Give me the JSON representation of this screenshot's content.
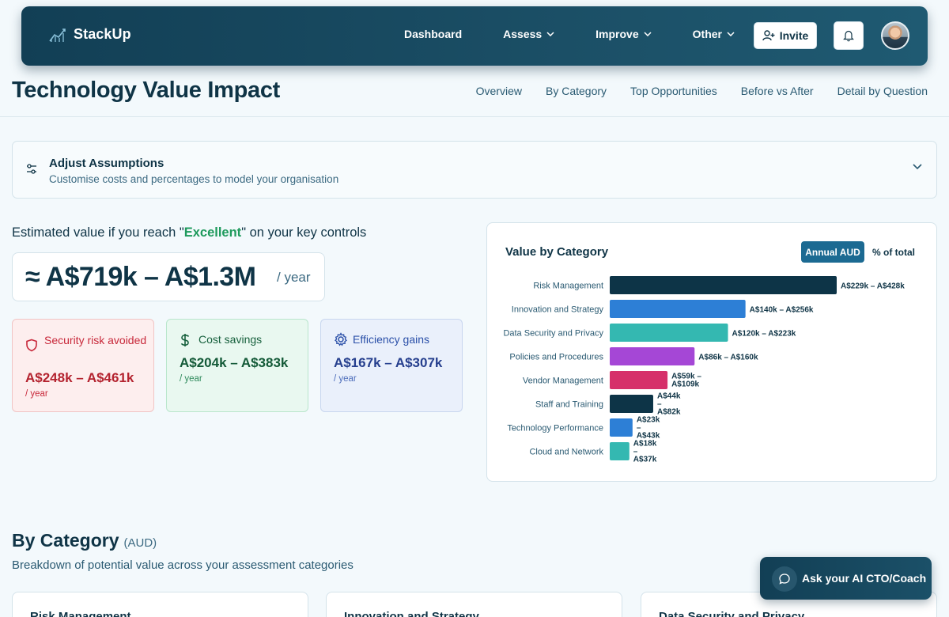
{
  "brand": {
    "name": "StackUp"
  },
  "nav": {
    "items": [
      {
        "label": "Dashboard",
        "has_dropdown": false
      },
      {
        "label": "Assess",
        "has_dropdown": true
      },
      {
        "label": "Improve",
        "has_dropdown": true
      },
      {
        "label": "Other",
        "has_dropdown": true
      }
    ],
    "invite_label": "Invite",
    "icons": {
      "invite": "add-user-icon",
      "bell": "bell-icon",
      "avatar": "user-avatar"
    }
  },
  "page": {
    "title": "Technology Value Impact",
    "subnav": [
      "Overview",
      "By Category",
      "Top Opportunities",
      "Before vs After",
      "Detail by Question"
    ]
  },
  "assumptions": {
    "title": "Adjust Assumptions",
    "subtitle": "Customise costs and percentages to model your organisation",
    "icon": "sliders-icon"
  },
  "estimate": {
    "heading_prefix": "Estimated value if you reach \"",
    "heading_highlight": "Excellent",
    "heading_suffix": "\" on your key controls",
    "value": "≈ A$719k – A$1.3M",
    "unit": "/ year",
    "colors": {
      "highlight": "#1e9a5c"
    }
  },
  "cards": [
    {
      "title": "Security risk avoided",
      "value": "A$248k – A$461k",
      "unit": "/ year",
      "icon": "shield-icon",
      "color": "#c8283a"
    },
    {
      "title": "Cost savings",
      "value": "A$204k – A$383k",
      "unit": "/ year",
      "icon": "dollar-icon",
      "color": "#17603d"
    },
    {
      "title": "Efficiency gains",
      "value": "A$167k – A$307k",
      "unit": "/ year",
      "icon": "gear-icon",
      "color": "#2a4fa8"
    }
  ],
  "chart": {
    "toggle_annual": "Annual AUD",
    "toggle_percent": "% of total",
    "active_toggle": "Annual AUD"
  },
  "chart_data": {
    "type": "bar",
    "orientation": "horizontal",
    "title": "Value by Category",
    "categories": [
      "Risk Management",
      "Innovation and Strategy",
      "Data Security and Privacy",
      "Policies and Procedures",
      "Vendor Management",
      "Staff and Training",
      "Technology Performance",
      "Cloud and Network"
    ],
    "values": [
      428,
      256,
      223,
      160,
      109,
      82,
      43,
      37
    ],
    "value_unit": "A$k (upper estimate)",
    "data_labels": [
      "A$229k – A$428k",
      "A$140k – A$256k",
      "A$120k – A$223k",
      "A$86k – A$160k",
      "A$59k – A$109k",
      "A$44k – A$82k",
      "A$23k – A$43k",
      "A$18k – A$37k"
    ],
    "colors": [
      "#0d3447",
      "#2d7fd6",
      "#34b8b1",
      "#a547d6",
      "#d6306a",
      "#0d3447",
      "#2d7fd6",
      "#34b8b1"
    ],
    "xlim": [
      0,
      428
    ],
    "grid": false,
    "legend": "none"
  },
  "by_category": {
    "title": "By Category",
    "unit": "(AUD)",
    "subtitle": "Breakdown of potential value across your assessment categories",
    "cards": [
      "Risk Management",
      "Innovation and Strategy",
      "Data Security and Privacy"
    ]
  },
  "coach": {
    "label": "Ask your AI CTO/Coach",
    "icon": "chat-bubble-icon"
  }
}
